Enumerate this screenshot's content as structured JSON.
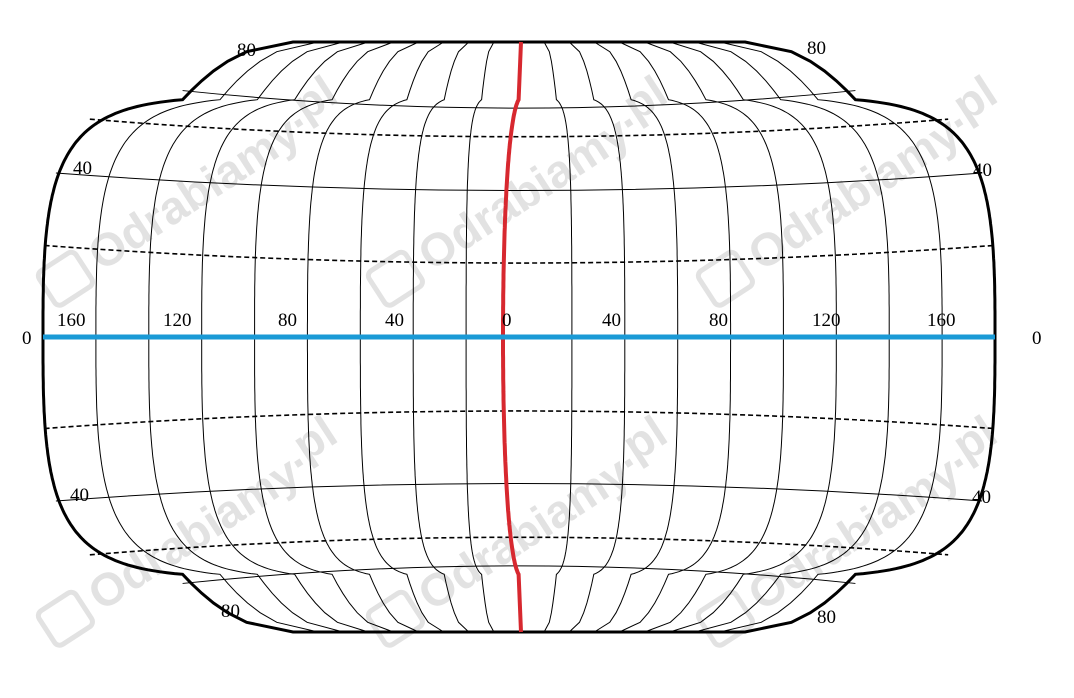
{
  "colors": {
    "outline": "#000000",
    "graticule": "#000000",
    "equator": "#1a9ad6",
    "prime_meridian": "#d7282f",
    "watermark": "#e2e2e2"
  },
  "watermark": {
    "text": "Odrabiamy",
    "suffix": ".pl"
  },
  "longitude_labels": [
    "160",
    "120",
    "80",
    "40",
    "0",
    "40",
    "80",
    "120",
    "160"
  ],
  "latitude_labels": {
    "left": [
      "80",
      "40",
      "0",
      "40",
      "80"
    ],
    "right": [
      "80",
      "40",
      "0",
      "40",
      "80"
    ]
  },
  "map": {
    "projection": "pseudo-cylindrical world grid",
    "graticule_step_deg": 20,
    "dashed_parallels_deg": [
      -60,
      -20,
      20,
      60
    ],
    "highlighted": [
      "equator",
      "prime meridian"
    ]
  }
}
